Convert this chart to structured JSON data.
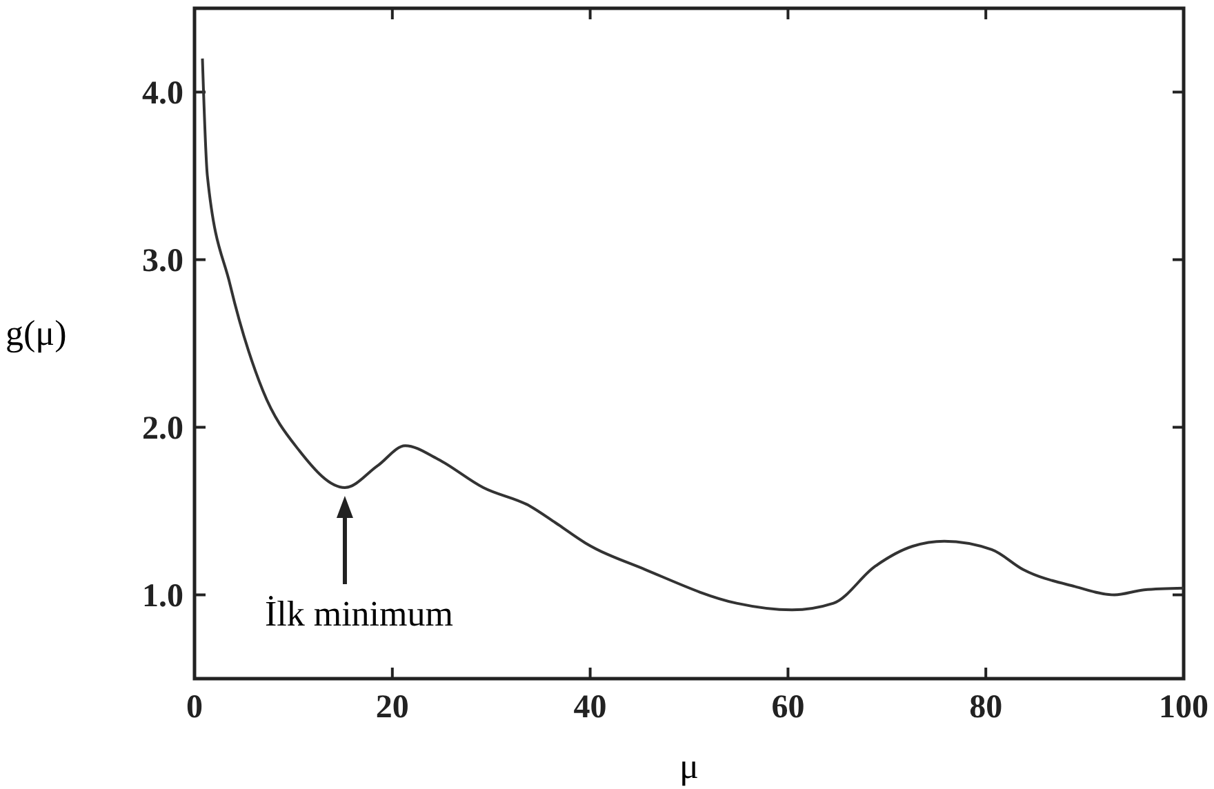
{
  "chart_data": {
    "type": "line",
    "xlabel": "μ",
    "ylabel": "g(μ)",
    "xlim": [
      0,
      100
    ],
    "ylim": [
      0.5,
      4.5
    ],
    "xticks": [
      0,
      20,
      40,
      60,
      80,
      100
    ],
    "yticks": [
      {
        "value": 1,
        "label": "1.0"
      },
      {
        "value": 2,
        "label": "2.0"
      },
      {
        "value": 3,
        "label": "3.0"
      },
      {
        "value": 4,
        "label": "4.0"
      }
    ],
    "grid": false,
    "marker": "none",
    "line_style": "solid",
    "annotations": [
      {
        "text": "İlk minimum",
        "x": 15.2,
        "y": 1.64
      }
    ],
    "series": [
      {
        "color": "#333333",
        "x": [
          0.8,
          1.3,
          3.6,
          6.9,
          10.6,
          15.2,
          18.5,
          21.3,
          24.6,
          29.2,
          33.9,
          36.5,
          39.5,
          45.6,
          54.8,
          60.4,
          64.6,
          68.8,
          72.6,
          75.8,
          80.6,
          83.8,
          89,
          93,
          96,
          100
        ],
        "values": [
          4.2,
          3.5,
          2.85,
          2.22,
          1.86,
          1.64,
          1.77,
          1.89,
          1.81,
          1.64,
          1.53,
          1.43,
          1.31,
          1.15,
          0.95,
          0.91,
          0.95,
          1.17,
          1.29,
          1.32,
          1.27,
          1.15,
          1.05,
          1.0,
          1.03,
          1.04
        ]
      }
    ]
  }
}
